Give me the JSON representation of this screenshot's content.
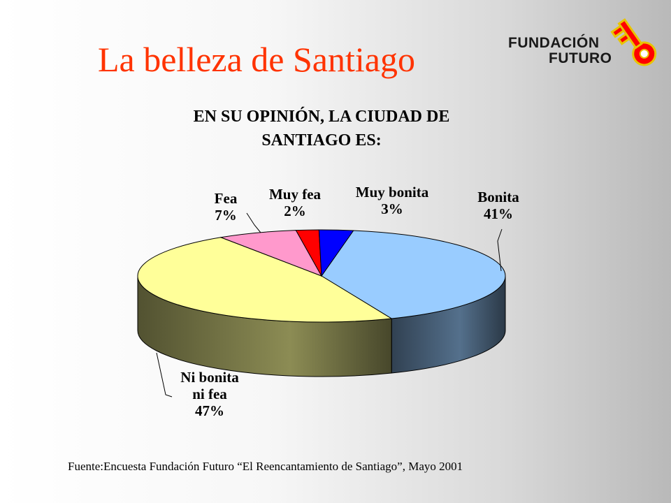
{
  "slide": {
    "title": "La belleza de Santiago",
    "source": "Fuente:Encuesta Fundación Futuro  “El Reencantamiento de Santiago”, Mayo 2001"
  },
  "logo": {
    "line1": "FUNDACIÓN",
    "line2": "FUTURO",
    "icon": "key-icon",
    "colors": {
      "key": "#ff0000",
      "key_outline": "#e8c400"
    }
  },
  "chart_data": {
    "type": "pie",
    "title_lines": [
      "EN SU OPINIÓN, LA CIUDAD DE",
      "SANTIAGO ES:"
    ],
    "slices": [
      {
        "label": "Bonita",
        "value": 41,
        "value_text": "41%",
        "color": "#99ccff"
      },
      {
        "label": "Ni bonita ni fea",
        "label_lines": [
          "Ni bonita",
          "ni fea"
        ],
        "value": 47,
        "value_text": "47%",
        "color": "#ffff99"
      },
      {
        "label": "Fea",
        "value": 7,
        "value_text": "7%",
        "color": "#ff99cc"
      },
      {
        "label": "Muy fea",
        "value": 2,
        "value_text": "2%",
        "color": "#ff0000"
      },
      {
        "label": "Muy bonita",
        "value": 3,
        "value_text": "3%",
        "color": "#0000ff"
      }
    ],
    "three_d": true,
    "legend": "none"
  }
}
